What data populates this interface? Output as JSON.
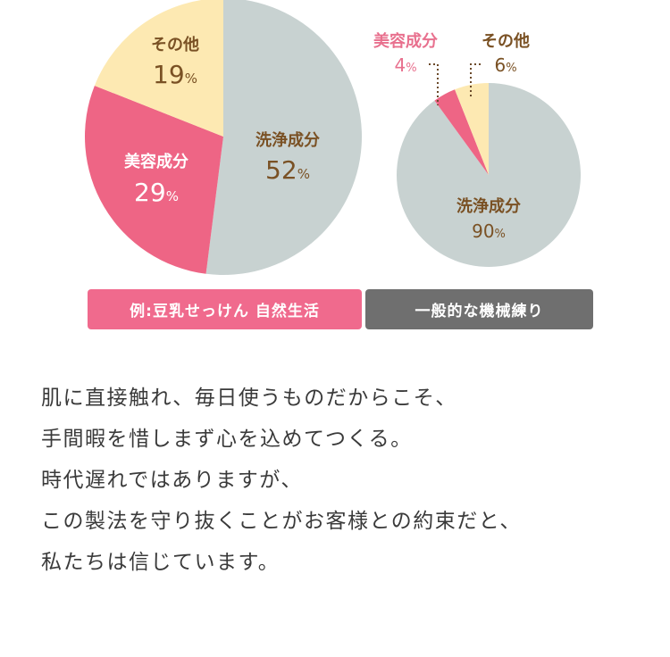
{
  "chart_data": [
    {
      "type": "pie",
      "slices": [
        {
          "name": "洗浄成分",
          "value": 52,
          "color": "#c8d2d1"
        },
        {
          "name": "美容成分",
          "value": 29,
          "color": "#ee6585"
        },
        {
          "name": "その他",
          "value": 19,
          "color": "#fde9b2"
        }
      ],
      "labels": [
        {
          "name": "洗浄成分",
          "value": "52",
          "unit": "%"
        },
        {
          "name": "美容成分",
          "value": "29",
          "unit": "%"
        },
        {
          "name": "その他",
          "value": "19",
          "unit": "%"
        }
      ],
      "caption": "例:豆乳せっけん 自然生活"
    },
    {
      "type": "pie",
      "slices": [
        {
          "name": "洗浄成分",
          "value": 90,
          "color": "#c8d2d1"
        },
        {
          "name": "美容成分",
          "value": 4,
          "color": "#ee6585"
        },
        {
          "name": "その他",
          "value": 6,
          "color": "#fde9b2"
        }
      ],
      "labels": [
        {
          "name": "洗浄成分",
          "value": "90",
          "unit": "%"
        },
        {
          "name": "美容成分",
          "value": "4",
          "unit": "%"
        },
        {
          "name": "その他",
          "value": "6",
          "unit": "%"
        }
      ],
      "caption": "一般的な機械練り"
    }
  ],
  "body_text": [
    "肌に直接触れ、毎日使うものだからこそ、",
    "手間暇を惜しまず心を込めてつくる。",
    "時代遅れではありますが、",
    "この製法を守り抜くことがお客様との約束だと、",
    "私たちは信じています。"
  ],
  "colors": {
    "leader": "#6b4a2a"
  }
}
